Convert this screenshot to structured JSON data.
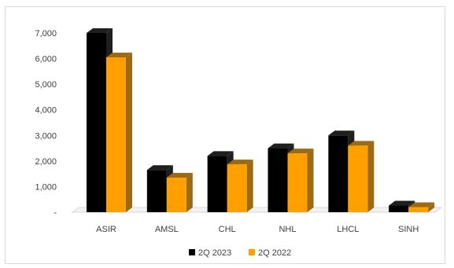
{
  "chart_data": {
    "type": "bar",
    "title": "",
    "xlabel": "",
    "ylabel": "",
    "categories": [
      "ASIR",
      "AMSL",
      "CHL",
      "NHL",
      "LHCL",
      "SINH"
    ],
    "series": [
      {
        "name": "2Q 2023",
        "values": [
          7000,
          1650,
          2200,
          2500,
          3000,
          260
        ],
        "color": "#000000",
        "side_color": "#1f1f1f"
      },
      {
        "name": "2Q 2022",
        "values": [
          6050,
          1350,
          1870,
          2300,
          2600,
          200
        ],
        "color": "#ffa000",
        "side_color": "#9c6a14"
      }
    ],
    "ylim": [
      0,
      7000
    ],
    "yticks": [
      0,
      1000,
      2000,
      3000,
      4000,
      5000,
      6000,
      7000
    ],
    "ytick_labels": [
      "-",
      "1,000",
      "2,000",
      "3,000",
      "4,000",
      "5,000",
      "6,000",
      "7,000"
    ],
    "grid": false,
    "legend_position": "bottom",
    "style": "3d-clustered-column"
  }
}
